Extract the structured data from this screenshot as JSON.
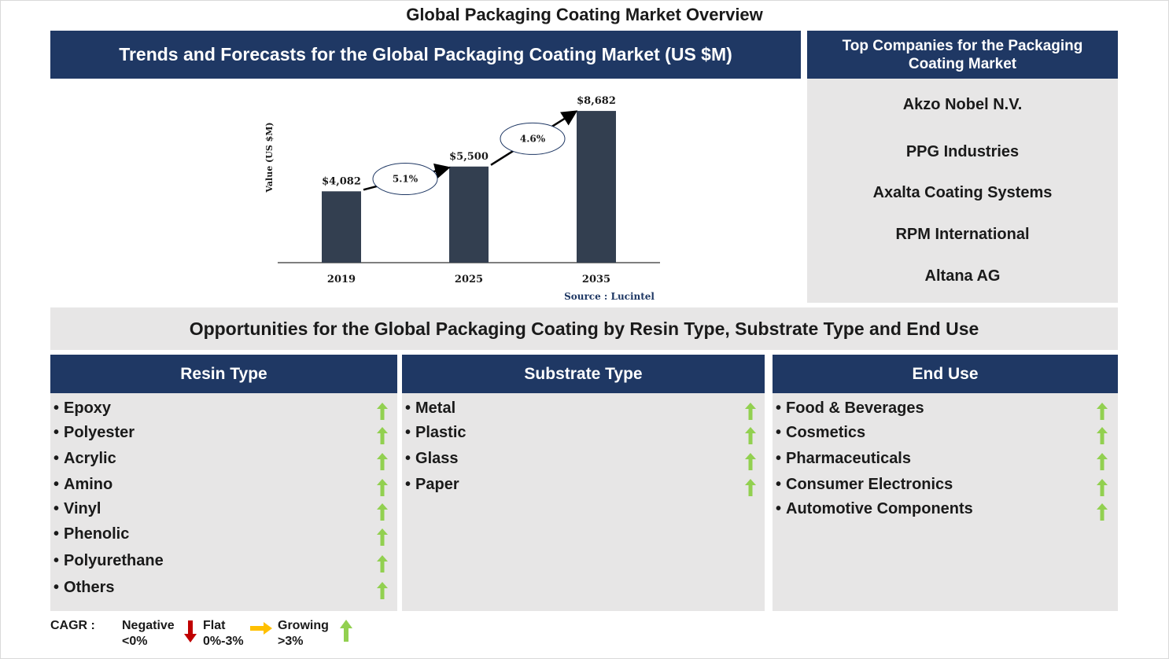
{
  "title": "Global Packaging Coating Market Overview",
  "chart_section": {
    "header": "Trends and Forecasts for the Global Packaging Coating Market (US $M)",
    "source": "Source : Lucintel"
  },
  "chart_data": {
    "type": "bar",
    "categories": [
      "2019",
      "2025",
      "2035"
    ],
    "values": [
      4082,
      5500,
      8682
    ],
    "value_labels": [
      "$4,082",
      "$5,500",
      "$8,682"
    ],
    "ylabel": "Value (US $M)",
    "xlabel": "",
    "ylim": [
      0,
      9000
    ],
    "cagr_annotations": [
      {
        "from": "2019",
        "to": "2025",
        "label": "5.1%"
      },
      {
        "from": "2025",
        "to": "2035",
        "label": "4.6%"
      }
    ],
    "bar_color": "#333f50",
    "grid": false
  },
  "companies": {
    "header": "Top Companies for the Packaging Coating Market",
    "items": [
      "Akzo Nobel N.V.",
      "PPG Industries",
      "Axalta Coating Systems",
      "RPM International",
      "Altana AG"
    ]
  },
  "opportunities": {
    "header": "Opportunities for the Global Packaging Coating by Resin Type, Substrate Type and End Use",
    "columns": [
      {
        "title": "Resin Type",
        "items": [
          "Epoxy",
          "Polyester",
          "Acrylic",
          "Amino",
          "Vinyl",
          "Phenolic",
          "Polyurethane",
          "Others"
        ]
      },
      {
        "title": "Substrate Type",
        "items": [
          "Metal",
          "Plastic",
          "Glass",
          "Paper"
        ]
      },
      {
        "title": "End Use",
        "items": [
          "Food & Beverages",
          "Cosmetics",
          "Pharmaceuticals",
          "Consumer Electronics",
          "Automotive Components"
        ]
      }
    ],
    "trend_icon": "green-up-arrow"
  },
  "legend": {
    "label": "CAGR  :",
    "negative": {
      "name": "Negative",
      "range": "<0%",
      "icon": "red-down-arrow",
      "color": "#c00000"
    },
    "flat": {
      "name": "Flat",
      "range": "0%-3%",
      "icon": "orange-right-arrow",
      "color": "#ffc000"
    },
    "growing": {
      "name": "Growing",
      "range": ">3%",
      "icon": "green-up-arrow",
      "color": "#92d050"
    }
  },
  "colors": {
    "navy": "#1f3864",
    "panel": "#e7e6e6",
    "up_arrow": "#92d050"
  }
}
